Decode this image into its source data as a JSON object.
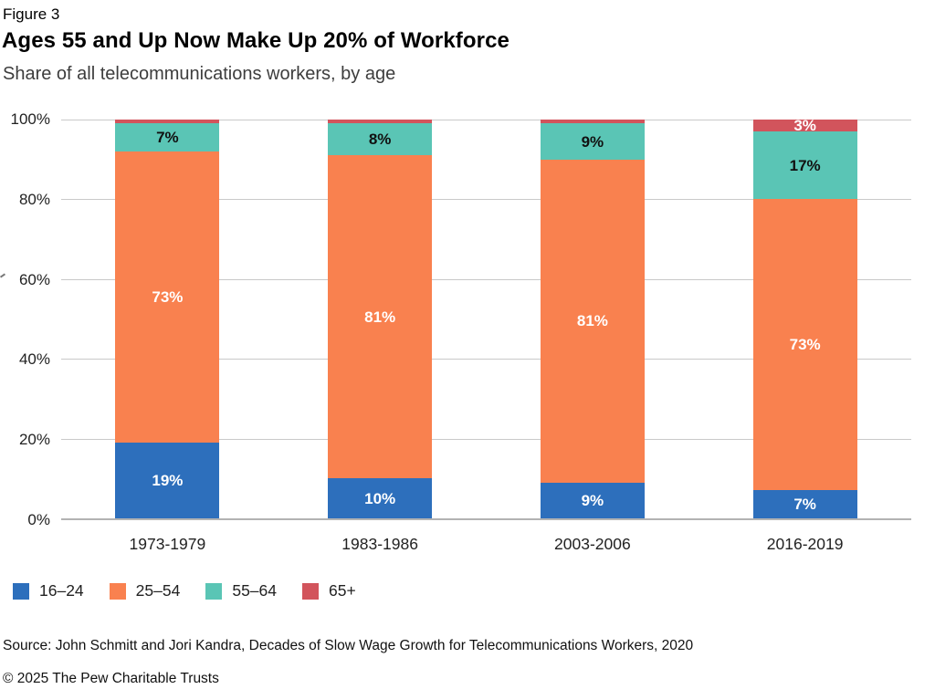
{
  "figure_label": "Figure 3",
  "title": "Ages 55 and Up Now Make Up 20% of Workforce",
  "subtitle": "Share of all telecommunications workers, by age",
  "source": "Source: John Schmitt and Jori Kandra, Decades of Slow Wage Growth for Telecommunications Workers, 2020",
  "copyright": "© 2025 The Pew Charitable Trusts",
  "colors": {
    "age_16_24": "#2d6fbc",
    "age_25_54": "#f9814f",
    "age_55_64": "#5ac5b5",
    "age_65_plus": "#d2545c",
    "gridline": "#c9c9c9",
    "baseline": "#b3b3b3"
  },
  "chart_data": {
    "type": "bar",
    "stacked": true,
    "title": "Ages 55 and Up Now Make Up 20% of Workforce",
    "subtitle": "Share of all telecommunications workers, by age",
    "categories": [
      "1973-1979",
      "1983-1986",
      "2003-2006",
      "2016-2019"
    ],
    "series": [
      {
        "name": "16–24",
        "color": "#2d6fbc",
        "label_color": "#ffffff",
        "values": [
          19,
          10,
          9,
          7
        ],
        "labels": [
          "19%",
          "10%",
          "9%",
          "7%"
        ]
      },
      {
        "name": "25–54",
        "color": "#f9814f",
        "label_color": "#ffffff",
        "values": [
          73,
          81,
          81,
          73
        ],
        "labels": [
          "73%",
          "81%",
          "81%",
          "73%"
        ]
      },
      {
        "name": "55–64",
        "color": "#5ac5b5",
        "label_color": "#111111",
        "values": [
          7,
          8,
          9,
          17
        ],
        "labels": [
          "7%",
          "8%",
          "9%",
          "17%"
        ]
      },
      {
        "name": "65+",
        "color": "#d2545c",
        "label_color": "#ffffff",
        "values": [
          1,
          1,
          1,
          3
        ],
        "labels": [
          "",
          "",
          "",
          "3%"
        ]
      }
    ],
    "xlabel": "",
    "ylabel": "",
    "ylim": [
      0,
      100
    ],
    "yticks": [
      {
        "value": 0,
        "label": "0%"
      },
      {
        "value": 20,
        "label": "20%"
      },
      {
        "value": 40,
        "label": "40%"
      },
      {
        "value": 60,
        "label": "60%"
      },
      {
        "value": 80,
        "label": "80%"
      },
      {
        "value": 100,
        "label": "100%"
      }
    ],
    "grid": true,
    "legend_position": "bottom"
  }
}
